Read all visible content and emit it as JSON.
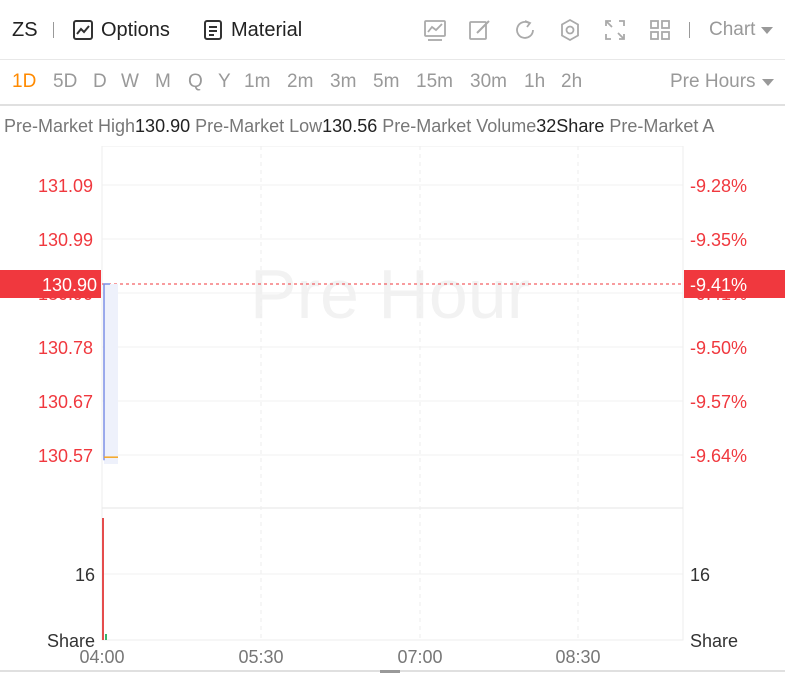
{
  "toolbar": {
    "symbol": "ZS",
    "options_label": "Options",
    "material_label": "Material",
    "chart_dropdown": "Chart",
    "icons": [
      "chart-icon",
      "draw-icon",
      "refresh-icon",
      "settings-icon",
      "fullscreen-icon",
      "layout-icon"
    ]
  },
  "periods": [
    "1D",
    "5D",
    "D",
    "W",
    "M",
    "Q",
    "Y",
    "1m",
    "2m",
    "3m",
    "5m",
    "15m",
    "30m",
    "1h",
    "2h"
  ],
  "active_period": "1D",
  "session_dropdown": "Pre Hours",
  "info": [
    {
      "label": "Pre-Market High",
      "value": "130.90"
    },
    {
      "label": "Pre-Market Low",
      "value": "130.56"
    },
    {
      "label": "Pre-Market Volume",
      "value": "32Share"
    },
    {
      "label": "Pre-Market A",
      "value": ""
    }
  ],
  "watermark": "Pre Hour",
  "chart_data": {
    "type": "line",
    "price_axis": [
      "131.09",
      "130.99",
      "130.90",
      "130.78",
      "130.67",
      "130.57"
    ],
    "percent_axis": [
      "-9.28%",
      "-9.35%",
      "-9.41%",
      "-9.50%",
      "-9.57%",
      "-9.64%"
    ],
    "current_price": "130.90",
    "current_percent": "-9.41%",
    "x_labels": [
      "04:00",
      "05:30",
      "07:00",
      "08:30"
    ],
    "volume_axis": {
      "tick": "16",
      "unit": "Share"
    },
    "series": [
      {
        "values": [
          130.56,
          130.9
        ]
      }
    ],
    "volume": [
      32
    ],
    "colors": {
      "price_text": "#f0383e",
      "current_bg": "#f0383e",
      "line": "#7d8fe6",
      "avg": "#f5a623",
      "volume": "#e54d4d"
    }
  }
}
